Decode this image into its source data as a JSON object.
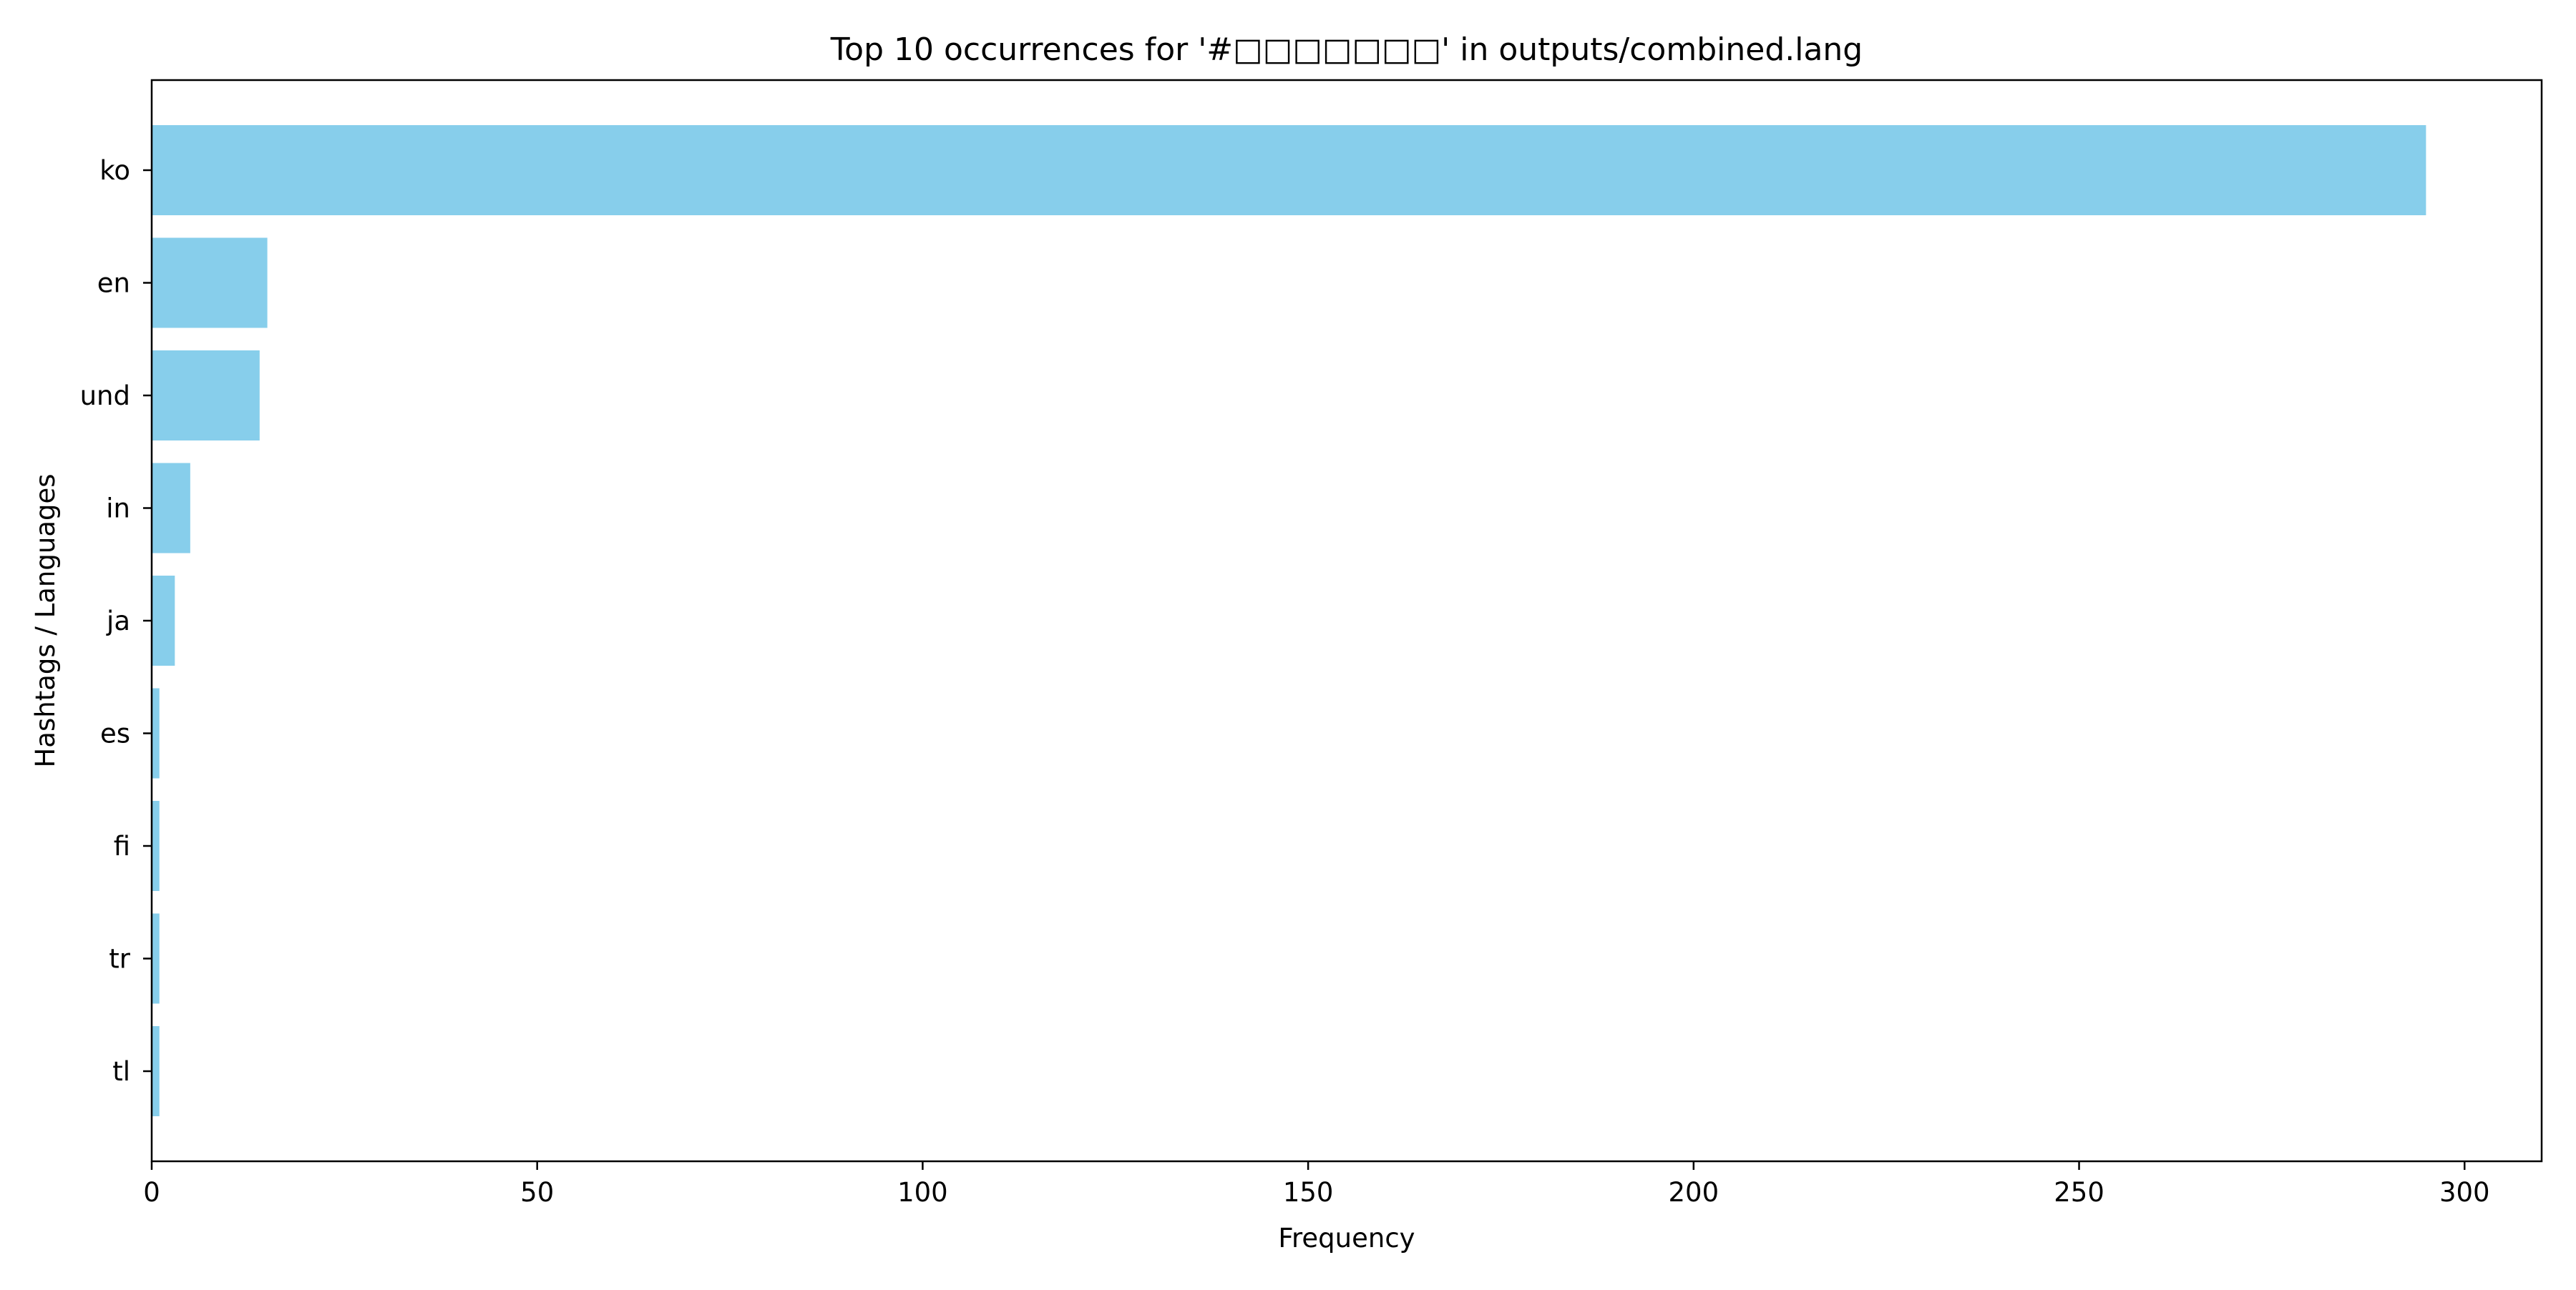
{
  "chart_data": {
    "type": "bar",
    "orientation": "horizontal",
    "title": "Top 10 occurrences for '#□□□□□□□' in outputs/combined.lang",
    "xlabel": "Frequency",
    "ylabel": "Hashtags / Languages",
    "categories": [
      "ko",
      "en",
      "und",
      "in",
      "ja",
      "es",
      "fi",
      "tr",
      "tl"
    ],
    "values": [
      295,
      15,
      14,
      5,
      3,
      1,
      1,
      1,
      1
    ],
    "xlim": [
      0,
      310
    ],
    "xticks": [
      0,
      50,
      100,
      150,
      200,
      250,
      300
    ],
    "grid": false,
    "legend": "none",
    "bar_color": "#87CEEB"
  }
}
